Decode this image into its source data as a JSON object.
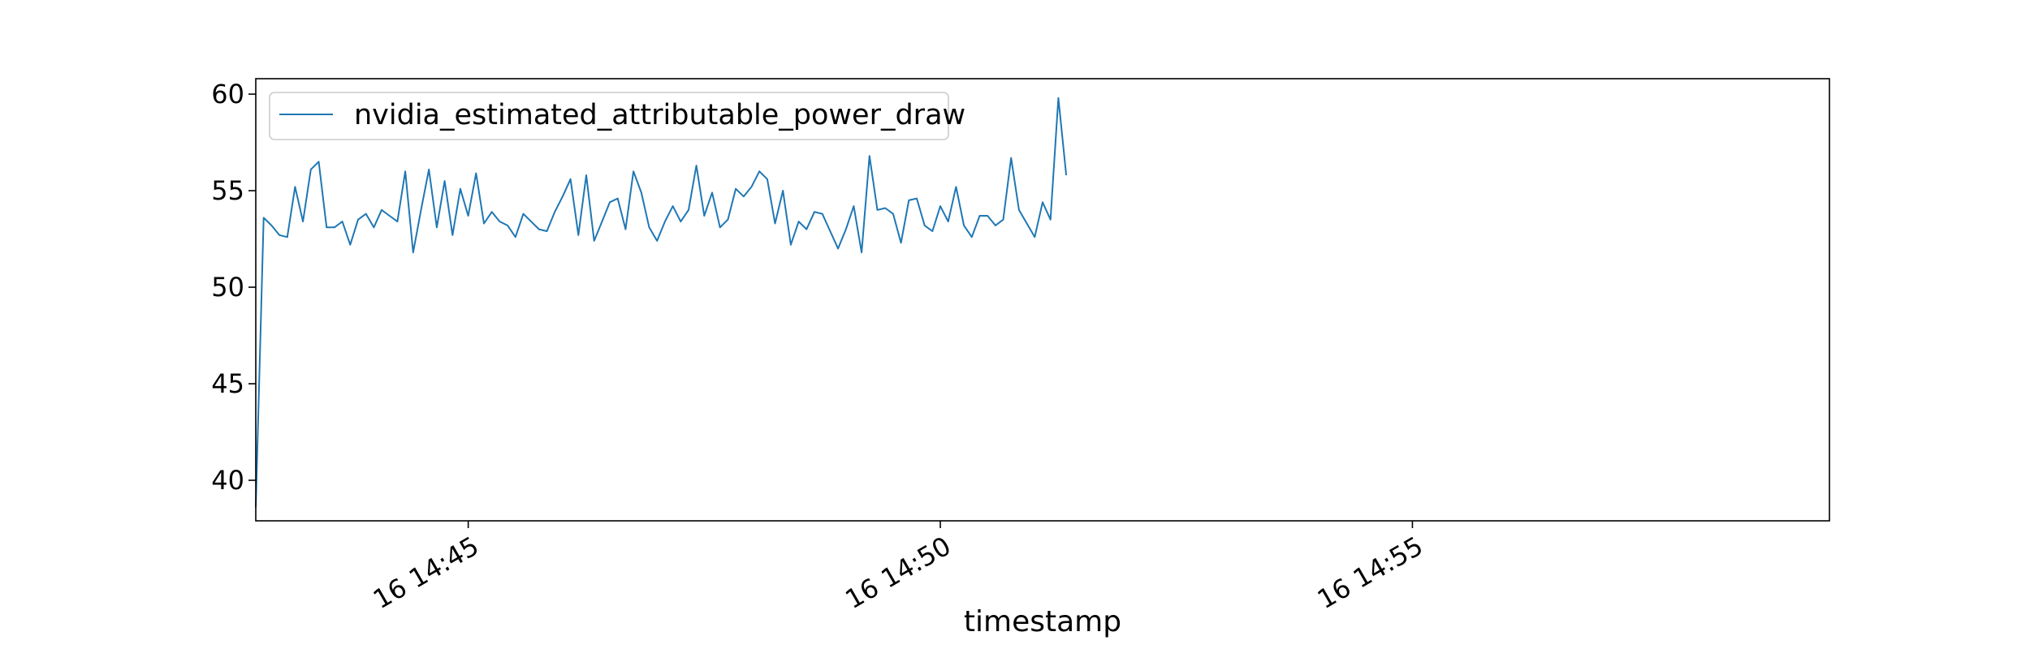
{
  "chart_data": {
    "type": "line",
    "xlabel": "timestamp",
    "ylabel": "",
    "x_start": "2024-01-16 14:42:45",
    "interval_seconds": 5,
    "xlim": [
      "2024-01-16 14:42:45",
      "2024-01-16 14:59:25"
    ],
    "xticks": [
      {
        "value": "2024-01-16 14:45:00",
        "label": "16 14:45"
      },
      {
        "value": "2024-01-16 14:50:00",
        "label": "16 14:50"
      },
      {
        "value": "2024-01-16 14:55:00",
        "label": "16 14:55"
      }
    ],
    "ylim": [
      37.9,
      60.8
    ],
    "yticks": [
      40,
      45,
      50,
      55,
      60
    ],
    "grid": false,
    "legend_position": "upper-left",
    "series": [
      {
        "name": "nvidia_estimated_attributable_power_draw",
        "color": "#1f77b4",
        "values": [
          38.6,
          53.6,
          53.2,
          52.7,
          52.6,
          55.2,
          53.4,
          56.1,
          56.5,
          53.1,
          53.1,
          53.4,
          52.2,
          53.5,
          53.8,
          53.1,
          54.0,
          53.7,
          53.4,
          56.0,
          51.8,
          54.0,
          56.1,
          53.1,
          55.5,
          52.7,
          55.1,
          53.7,
          55.9,
          53.3,
          53.9,
          53.4,
          53.2,
          52.6,
          53.8,
          53.4,
          53.0,
          52.9,
          53.9,
          54.7,
          55.6,
          52.7,
          55.8,
          52.4,
          53.4,
          54.4,
          54.6,
          53.0,
          56.0,
          54.9,
          53.1,
          52.4,
          53.4,
          54.2,
          53.4,
          54.0,
          56.3,
          53.7,
          54.9,
          53.1,
          53.5,
          55.1,
          54.7,
          55.2,
          56.0,
          55.6,
          53.3,
          55.0,
          52.2,
          53.4,
          53.0,
          53.9,
          53.8,
          52.9,
          52.0,
          53.0,
          54.2,
          51.8,
          56.8,
          54.0,
          54.1,
          53.8,
          52.3,
          54.5,
          54.6,
          53.2,
          52.9,
          54.2,
          53.4,
          55.2,
          53.2,
          52.6,
          53.7,
          53.7,
          53.2,
          53.5,
          56.7,
          54.0,
          53.3,
          52.6,
          54.4,
          53.5,
          59.8,
          55.8
        ]
      }
    ]
  }
}
